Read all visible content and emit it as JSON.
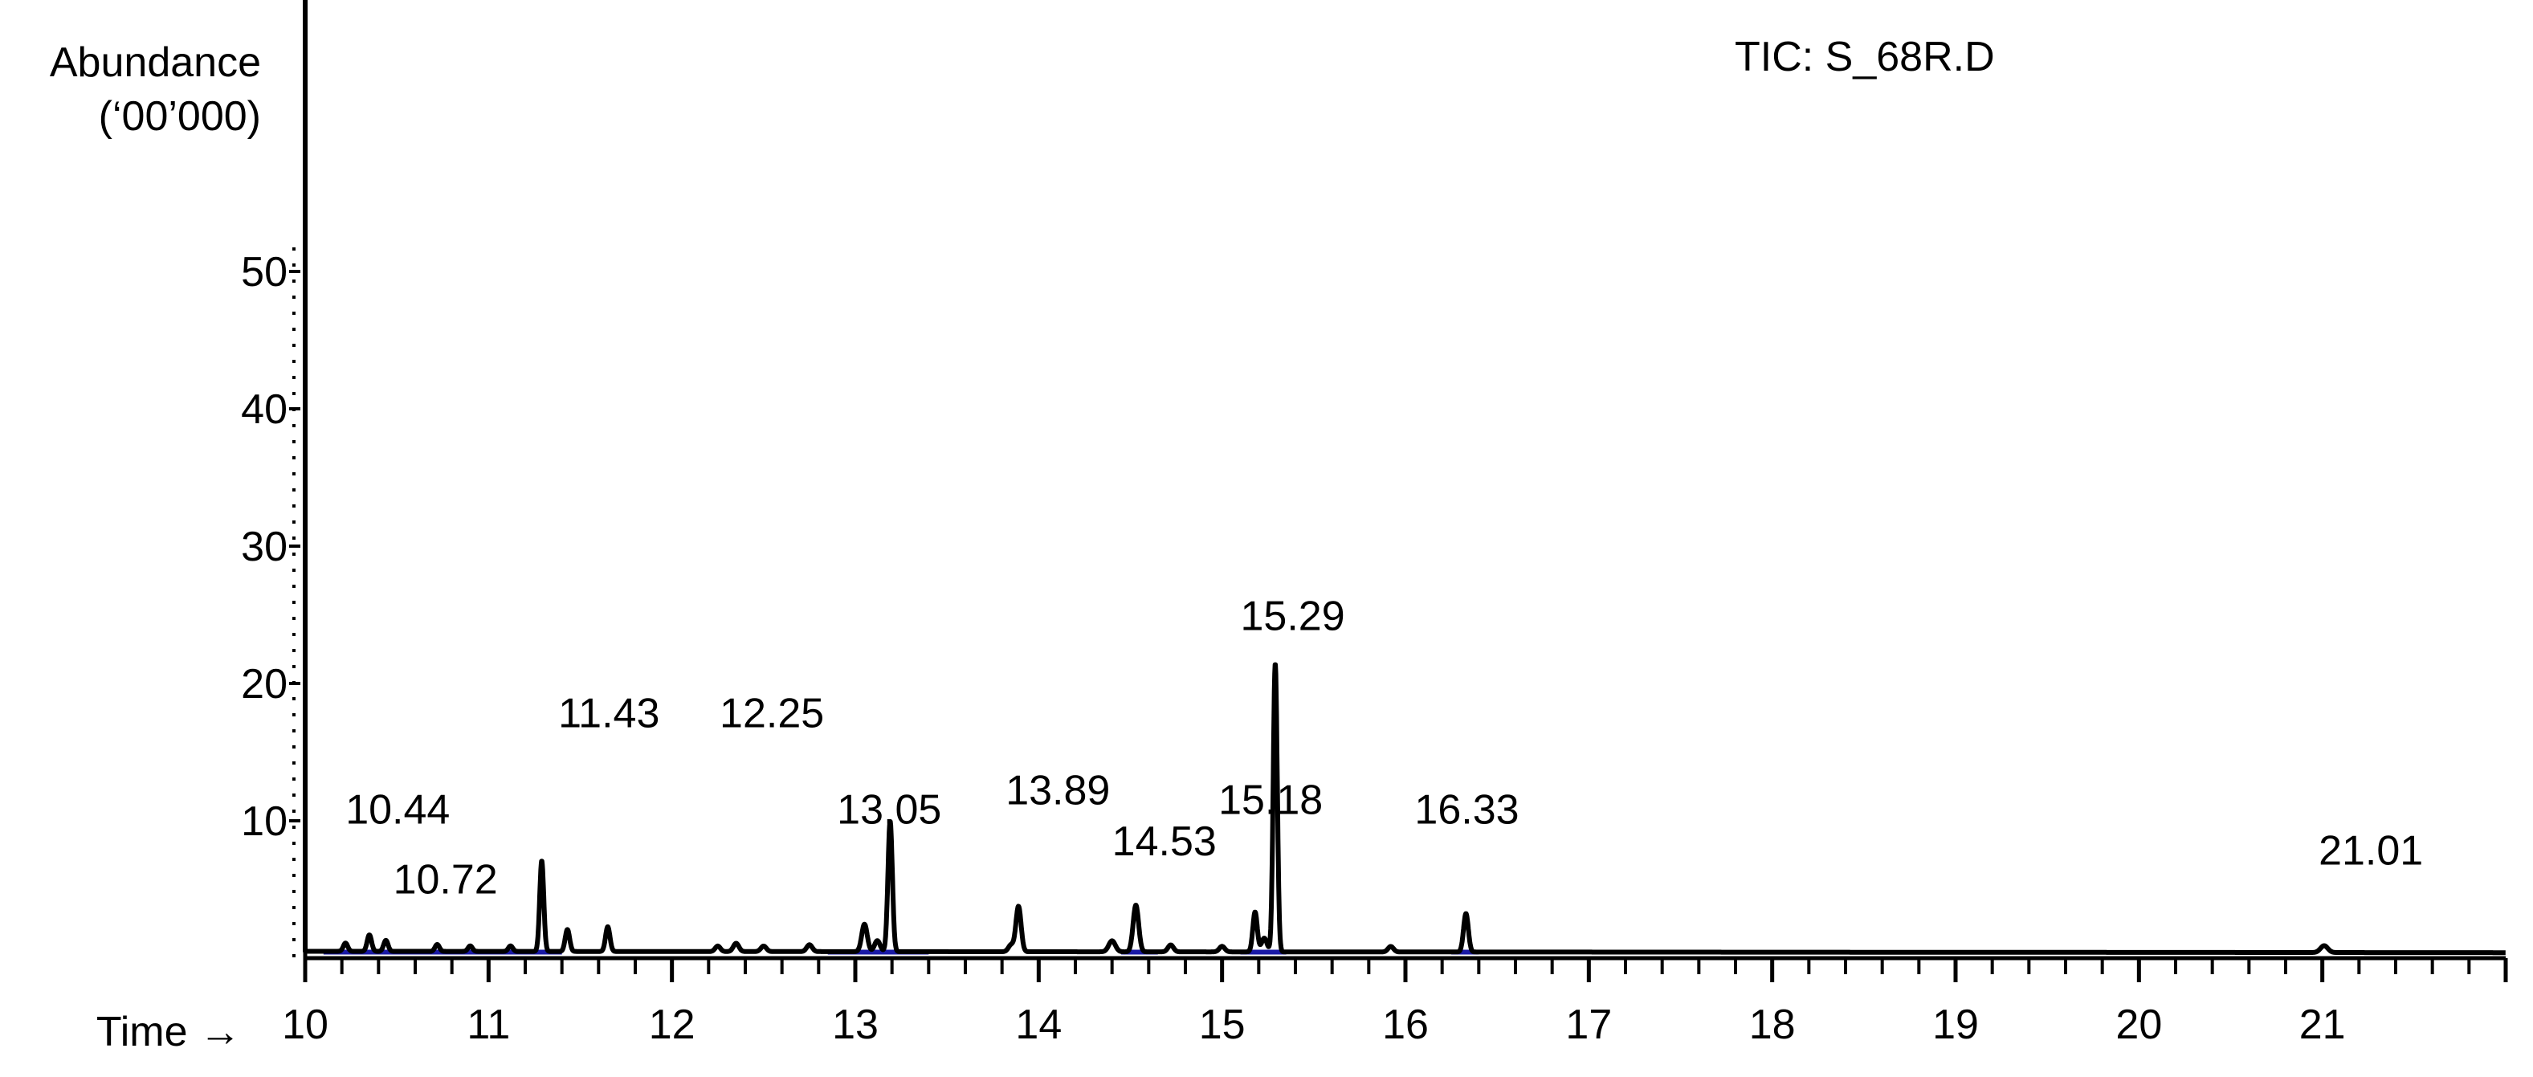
{
  "chart_data": {
    "type": "line",
    "title": "TIC: S_68R.D",
    "ylabel": [
      "Abundance",
      "(‘00’000)"
    ],
    "xlabel": "Time →",
    "xlim": [
      10,
      22
    ],
    "ylim": [
      0,
      70
    ],
    "x_ticks": [
      10,
      11,
      12,
      13,
      14,
      15,
      16,
      17,
      18,
      19,
      20,
      21
    ],
    "y_ticks": [
      10,
      20,
      30,
      40,
      50
    ],
    "grid": false,
    "legend": "none",
    "line_color": "#000000",
    "baseline_color": "#1a1aa6",
    "baseline_segments": [
      [
        10.1,
        11.4
      ],
      [
        12.85,
        13.4
      ],
      [
        14.45,
        14.65
      ],
      [
        15.1,
        15.35
      ],
      [
        16.25,
        16.4
      ]
    ],
    "baseline": 0.5,
    "start_spike": {
      "x": 10.0,
      "y": 70
    },
    "peaks": [
      {
        "x": 10.22,
        "y": 0.6,
        "w": 0.012
      },
      {
        "x": 10.35,
        "y": 1.2,
        "w": 0.012
      },
      {
        "x": 10.44,
        "y": 0.8,
        "w": 0.012
      },
      {
        "x": 10.72,
        "y": 0.5,
        "w": 0.012
      },
      {
        "x": 10.9,
        "y": 0.4,
        "w": 0.012
      },
      {
        "x": 11.12,
        "y": 0.4,
        "w": 0.012
      },
      {
        "x": 11.29,
        "y": 6.6,
        "w": 0.011
      },
      {
        "x": 11.43,
        "y": 1.6,
        "w": 0.012
      },
      {
        "x": 11.65,
        "y": 1.8,
        "w": 0.012
      },
      {
        "x": 12.25,
        "y": 0.4,
        "w": 0.014
      },
      {
        "x": 12.35,
        "y": 0.6,
        "w": 0.015
      },
      {
        "x": 12.5,
        "y": 0.4,
        "w": 0.015
      },
      {
        "x": 12.75,
        "y": 0.5,
        "w": 0.015
      },
      {
        "x": 13.05,
        "y": 2.0,
        "w": 0.015
      },
      {
        "x": 13.12,
        "y": 0.8,
        "w": 0.015
      },
      {
        "x": 13.19,
        "y": 9.5,
        "w": 0.012
      },
      {
        "x": 13.85,
        "y": 0.5,
        "w": 0.015
      },
      {
        "x": 13.89,
        "y": 3.3,
        "w": 0.014
      },
      {
        "x": 14.4,
        "y": 0.8,
        "w": 0.018
      },
      {
        "x": 14.53,
        "y": 3.4,
        "w": 0.015
      },
      {
        "x": 14.72,
        "y": 0.5,
        "w": 0.015
      },
      {
        "x": 15.0,
        "y": 0.4,
        "w": 0.015
      },
      {
        "x": 15.18,
        "y": 2.9,
        "w": 0.012
      },
      {
        "x": 15.23,
        "y": 1.0,
        "w": 0.015
      },
      {
        "x": 15.29,
        "y": 21.0,
        "w": 0.011
      },
      {
        "x": 15.92,
        "y": 0.4,
        "w": 0.015
      },
      {
        "x": 16.33,
        "y": 2.8,
        "w": 0.013
      },
      {
        "x": 21.01,
        "y": 0.5,
        "w": 0.02
      }
    ],
    "annotations": [
      {
        "text": "10.44",
        "x": 10.22,
        "y": 9.8
      },
      {
        "text": "10.72",
        "x": 10.48,
        "y": 4.7
      },
      {
        "text": "11.43",
        "x": 11.38,
        "y": 16.8
      },
      {
        "text": "12.25",
        "x": 12.26,
        "y": 16.8
      },
      {
        "text": "13.05",
        "x": 12.9,
        "y": 9.8
      },
      {
        "text": "13.89",
        "x": 13.82,
        "y": 11.2
      },
      {
        "text": "14.53",
        "x": 14.4,
        "y": 7.5
      },
      {
        "text": "15.18",
        "x": 14.98,
        "y": 10.5
      },
      {
        "text": "15.29",
        "x": 15.1,
        "y": 23.9
      },
      {
        "text": "16.33",
        "x": 16.05,
        "y": 9.8
      },
      {
        "text": "21.01",
        "x": 20.98,
        "y": 6.8
      }
    ]
  }
}
